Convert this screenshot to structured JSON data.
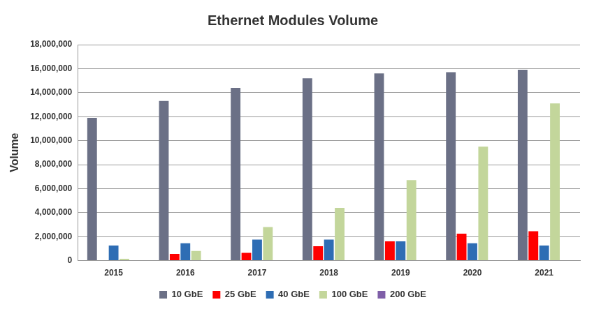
{
  "chart_data": {
    "type": "bar",
    "title": "Ethernet Modules Volume",
    "y_label": "Volume",
    "categories": [
      "2015",
      "2016",
      "2017",
      "2018",
      "2019",
      "2020",
      "2021"
    ],
    "series": [
      {
        "name": "10 GbE",
        "color": "#6b7086",
        "values": [
          11900000,
          13300000,
          14400000,
          15200000,
          15600000,
          15700000,
          15900000
        ]
      },
      {
        "name": "25 GbE",
        "color": "#ff0000",
        "values": [
          0,
          560000,
          650000,
          1200000,
          1600000,
          2250000,
          2450000
        ]
      },
      {
        "name": "40 GbE",
        "color": "#2e6db4",
        "values": [
          1250000,
          1450000,
          1750000,
          1750000,
          1600000,
          1450000,
          1250000
        ]
      },
      {
        "name": "100 GbE",
        "color": "#c3d69b",
        "values": [
          150000,
          800000,
          2800000,
          4400000,
          6700000,
          9500000,
          13100000
        ]
      },
      {
        "name": "200 GbE",
        "color": "#7f5fa8",
        "values": [
          0,
          0,
          0,
          0,
          0,
          0,
          0
        ]
      }
    ],
    "ylim": [
      0,
      18000000
    ],
    "yticks": [
      0,
      {
        "value": 2000000,
        "label": "2,000,000"
      },
      {
        "value": 4000000,
        "label": "4,000,000"
      },
      {
        "value": 6000000,
        "label": "6,000,000"
      },
      {
        "value": 8000000,
        "label": "8,000,000"
      },
      {
        "value": 10000000,
        "label": "10,000,000"
      },
      {
        "value": 12000000,
        "label": "12,000,000"
      },
      {
        "value": 14000000,
        "label": "14,000,000"
      },
      {
        "value": 16000000,
        "label": "16,000,000"
      },
      {
        "value": 18000000,
        "label": "18,000,000"
      }
    ],
    "grid": true,
    "legend": "bottom"
  }
}
